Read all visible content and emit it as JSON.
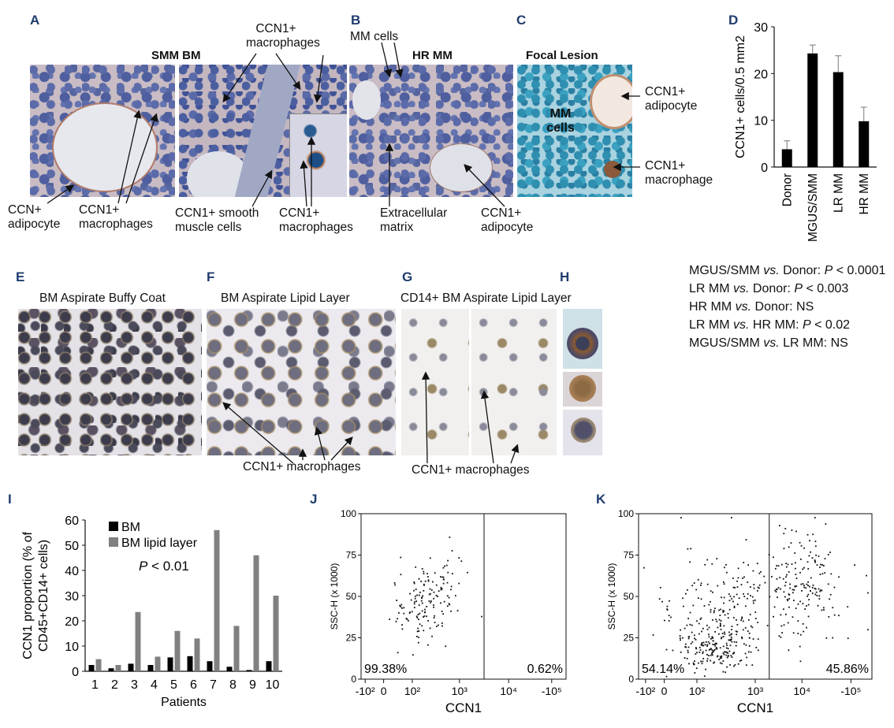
{
  "panel_letters": [
    "A",
    "B",
    "C",
    "D",
    "E",
    "F",
    "G",
    "H",
    "I",
    "J",
    "K"
  ],
  "panel_a": {
    "title": "SMM BM",
    "labels": [
      "CCN1+ macrophages",
      "CCN+ adipocyte",
      "CCN1+ macrophages",
      "CCN1+ smooth muscle cells",
      "CCN1+ macrophages"
    ]
  },
  "panel_b": {
    "title": "HR MM",
    "labels": [
      "MM cells",
      "Extracellular matrix",
      "CCN1+ adipocyte"
    ]
  },
  "panel_c": {
    "title": "Focal Lesion",
    "inset_text": "MM cells",
    "labels": [
      "CCN1+ adipocyte",
      "CCN1+ macrophage"
    ]
  },
  "panel_e": {
    "title": "BM Aspirate Buffy Coat"
  },
  "panel_f": {
    "title": "BM Aspirate Lipid Layer",
    "annotation": "CCN1+ macrophages"
  },
  "panel_g": {
    "title": "CD14+ BM Aspirate Lipid Layer",
    "annotation": "CCN1+ macrophages"
  },
  "stats_text": [
    {
      "a": "MGUS/SMM ",
      "vs": "vs.",
      "b": " Donor: ",
      "p": "P",
      "c": " < 0.0001"
    },
    {
      "a": "LR MM ",
      "vs": "vs.",
      "b": " Donor: ",
      "p": "P",
      "c": " < 0.003"
    },
    {
      "a": "HR MM ",
      "vs": "vs.",
      "b": " Donor: NS",
      "p": "",
      "c": ""
    },
    {
      "a": "LR MM ",
      "vs": "vs.",
      "b": " HR MM: ",
      "p": "P",
      "c": " < 0.02"
    },
    {
      "a": "MGUS/SMM ",
      "vs": "vs.",
      "b": " LR MM: NS",
      "p": "",
      "c": ""
    }
  ],
  "chart_data": [
    {
      "panel": "D",
      "type": "bar",
      "categories": [
        "Donor",
        "MGUS/SMM",
        "LR MM",
        "HR MM"
      ],
      "values": [
        3.8,
        24.3,
        20.3,
        9.8
      ],
      "errors": [
        1.8,
        1.8,
        3.5,
        3.0
      ],
      "ylabel": "CCN1+ cells/0.5 mm2",
      "ylim": [
        0,
        30
      ],
      "yticks": [
        0,
        10,
        20,
        30
      ],
      "bar_color": "#000000"
    },
    {
      "panel": "I",
      "type": "bar",
      "categories": [
        "1",
        "2",
        "3",
        "4",
        "5",
        "6",
        "7",
        "8",
        "9",
        "10"
      ],
      "series": [
        {
          "name": "BM",
          "values": [
            2.5,
            1.2,
            3.0,
            2.5,
            5.5,
            6.0,
            4.0,
            1.8,
            0.5,
            4.0
          ],
          "color": "#000000"
        },
        {
          "name": "BM lipid layer",
          "values": [
            4.8,
            2.5,
            23.5,
            5.8,
            16.0,
            13.0,
            56.0,
            18.0,
            46.0,
            30.0
          ],
          "color": "#808080"
        }
      ],
      "xlabel": "Patients",
      "ylabel_lines": [
        "CCN1 proportion (% of",
        "CD45+CD14+ cells)"
      ],
      "ylim": [
        0,
        60
      ],
      "yticks": [
        0,
        10,
        20,
        30,
        40,
        50,
        60
      ],
      "annotation_p": "P",
      "annotation_rest": " < 0.01",
      "legend_position": "top-left"
    },
    {
      "panel": "J",
      "type": "scatter",
      "xlabel": "CCN1",
      "ylabel": "SSC-H (x 1000)",
      "yticks": [
        "0",
        "25",
        "50",
        "75",
        "100"
      ],
      "xtick_labels": [
        "-10²",
        "0",
        "10²",
        "10³",
        "10⁴",
        "-10⁵"
      ],
      "gate_labels": [
        "99.38%",
        "0.62%"
      ],
      "event_count": 150
    },
    {
      "panel": "K",
      "type": "scatter",
      "xlabel": "CCN1",
      "ylabel": "SSC-H (x 1000)",
      "yticks": [
        "0",
        "25",
        "50",
        "75",
        "100"
      ],
      "xtick_labels": [
        "-10²",
        "0",
        "10²",
        "10³",
        "10⁴",
        "-10⁵"
      ],
      "gate_labels": [
        "54.14%",
        "45.86%"
      ],
      "event_count": 520
    }
  ]
}
